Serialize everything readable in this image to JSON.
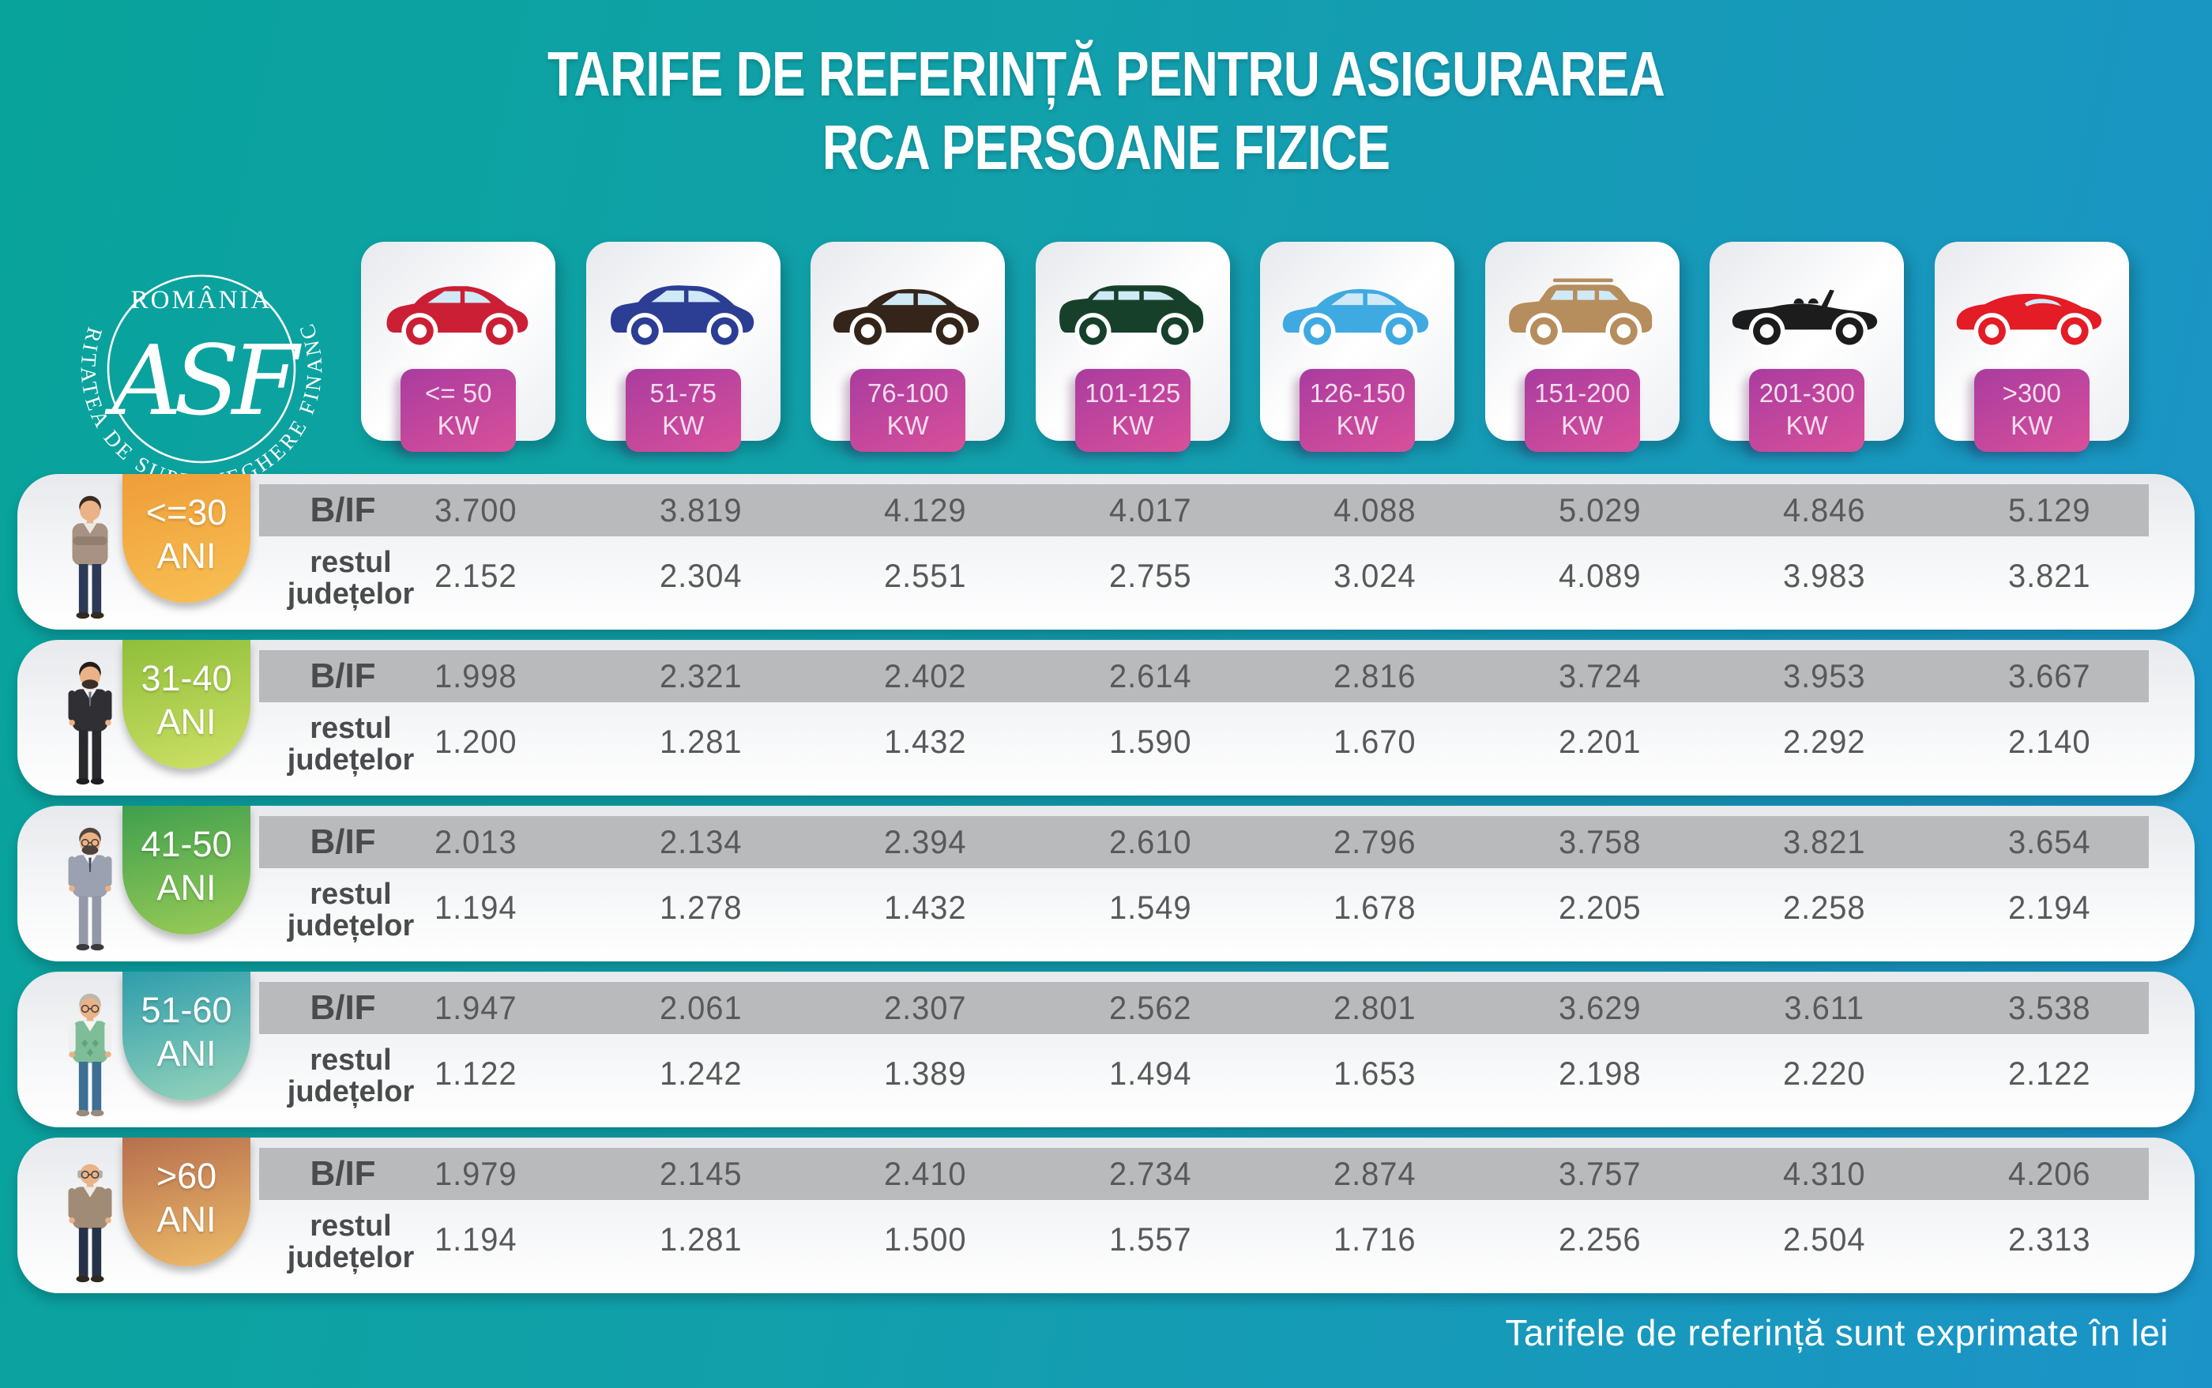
{
  "title": {
    "line1": "TARIFE DE REFERINȚĂ PENTRU ASIGURAREA",
    "line2": "RCA PERSOANE FIZICE"
  },
  "logo": {
    "country": "ROMÂNIA",
    "monogram": "ASF",
    "ring_text": "AUTORITATEA DE SUPRAVEGHERE FINANCIARĂ"
  },
  "footnote": "Tarifele de referință sunt exprimate în lei",
  "row_labels": {
    "bif": "B/IF",
    "rest_line1": "restul",
    "rest_line2": "județelor"
  },
  "badge_colors": {
    "kw_from": "#a93c9f",
    "kw_to": "#d9509a"
  },
  "power_categories": [
    {
      "label_line1": "<= 50",
      "label_line2": "KW",
      "car_type": "hatchback",
      "car_color": "#cb1f35"
    },
    {
      "label_line1": "51-75",
      "label_line2": "KW",
      "car_type": "crossover",
      "car_color": "#2c3d94"
    },
    {
      "label_line1": "76-100",
      "label_line2": "KW",
      "car_type": "sedan",
      "car_color": "#35241a"
    },
    {
      "label_line1": "101-125",
      "label_line2": "KW",
      "car_type": "minivan",
      "car_color": "#16402a"
    },
    {
      "label_line1": "126-150",
      "label_line2": "KW",
      "car_type": "sedan",
      "car_color": "#3fa9e1"
    },
    {
      "label_line1": "151-200",
      "label_line2": "KW",
      "car_type": "suv",
      "car_color": "#b68d5d"
    },
    {
      "label_line1": "201-300",
      "label_line2": "KW",
      "car_type": "convertible",
      "car_color": "#1d1c1c"
    },
    {
      "label_line1": ">300",
      "label_line2": "KW",
      "car_type": "sports",
      "car_color": "#e31c25"
    }
  ],
  "age_groups": [
    {
      "age_line1": "<=30",
      "age_line2": "ANI",
      "badge_from": "#ef9d38",
      "badge_to": "#f8c154",
      "bif": [
        "3.700",
        "3.819",
        "4.129",
        "4.017",
        "4.088",
        "5.029",
        "4.846",
        "5.129"
      ],
      "rest": [
        "2.152",
        "2.304",
        "2.551",
        "2.755",
        "3.024",
        "4.089",
        "3.983",
        "3.821"
      ],
      "person": {
        "hair": "#3a2b21",
        "skin": "#eab286",
        "top": "#a79284",
        "top_dark": "#927e6f",
        "shirt_color": "#eee9e2",
        "pants": "#2c3a57",
        "shoes": "#33291f",
        "glasses": false,
        "beard": null,
        "bald": false,
        "crossed": true,
        "sleeve": "#a79284",
        "tie": null,
        "vest": false
      }
    },
    {
      "age_line1": "31-40",
      "age_line2": "ANI",
      "badge_from": "#8fbe3b",
      "badge_to": "#cfe166",
      "bif": [
        "1.998",
        "2.321",
        "2.402",
        "2.614",
        "2.816",
        "3.724",
        "3.953",
        "3.667"
      ],
      "rest": [
        "1.200",
        "1.281",
        "1.432",
        "1.590",
        "1.670",
        "2.201",
        "2.292",
        "2.140"
      ],
      "person": {
        "hair": "#231d19",
        "skin": "#eab286",
        "top": "#302f33",
        "top_dark": "#26252a",
        "shirt_color": "#f2f3f5",
        "pants": "#2a292d",
        "shoes": "#1f1f22",
        "glasses": false,
        "beard": "#3a2f28",
        "bald": false,
        "crossed": false,
        "sleeve": "#302f33",
        "tie": "#6a7383",
        "vest": false
      }
    },
    {
      "age_line1": "41-50",
      "age_line2": "ANI",
      "badge_from": "#3f9f4e",
      "badge_to": "#9ccd57",
      "bif": [
        "2.013",
        "2.134",
        "2.394",
        "2.610",
        "2.796",
        "3.758",
        "3.821",
        "3.654"
      ],
      "rest": [
        "1.194",
        "1.278",
        "1.432",
        "1.549",
        "1.678",
        "2.205",
        "2.258",
        "2.194"
      ],
      "person": {
        "hair": "#52453c",
        "skin": "#eab286",
        "top": "#9ba1b0",
        "top_dark": "#878d9c",
        "shirt_color": "#f4f4f6",
        "pants": "#9298a6",
        "shoes": "#3a3a40",
        "glasses": true,
        "beard": "#4e423a",
        "bald": false,
        "crossed": false,
        "sleeve": "#9ba1b0",
        "tie": "#3f4a5e",
        "vest": false
      }
    },
    {
      "age_line1": "51-60",
      "age_line2": "ANI",
      "badge_from": "#2e9dab",
      "badge_to": "#98d5bb",
      "bif": [
        "1.947",
        "2.061",
        "2.307",
        "2.562",
        "2.801",
        "3.629",
        "3.611",
        "3.538"
      ],
      "rest": [
        "1.122",
        "1.242",
        "1.389",
        "1.494",
        "1.653",
        "2.198",
        "2.220",
        "2.122"
      ],
      "person": {
        "hair": "#bdb8ae",
        "skin": "#eab286",
        "top": "#7fbd98",
        "top_dark": "#68a984",
        "shirt_color": "#f6f6f4",
        "pants": "#3c6f91",
        "shoes": "#978b7e",
        "glasses": true,
        "beard": null,
        "bald": false,
        "crossed": false,
        "sleeve": "#eef0ee",
        "tie": null,
        "vest": true
      }
    },
    {
      "age_line1": ">60",
      "age_line2": "ANI",
      "badge_from": "#b76f4e",
      "badge_to": "#eebd69",
      "bif": [
        "1.979",
        "2.145",
        "2.410",
        "2.734",
        "2.874",
        "3.757",
        "4.310",
        "4.206"
      ],
      "rest": [
        "1.194",
        "1.281",
        "1.500",
        "1.557",
        "1.716",
        "2.256",
        "2.504",
        "2.313"
      ],
      "person": {
        "hair": "#b3aea6",
        "skin": "#eab286",
        "top": "#a08b77",
        "top_dark": "#8b7862",
        "shirt_color": "#efece6",
        "pants": "#263248",
        "shoes": "#2f2821",
        "glasses": true,
        "beard": null,
        "bald": true,
        "crossed": false,
        "sleeve": "#a08b77",
        "tie": null,
        "vest": false
      }
    }
  ],
  "chart_data": {
    "type": "table",
    "title": "TARIFE DE REFERINȚĂ PENTRU ASIGURAREA RCA PERSOANE FIZICE",
    "unit": "lei",
    "note": "Tarifele de referință sunt exprimate în lei",
    "columns": [
      "<=50 KW",
      "51-75 KW",
      "76-100 KW",
      "101-125 KW",
      "126-150 KW",
      "151-200 KW",
      "201-300 KW",
      ">300 KW"
    ],
    "rows": [
      {
        "age": "<=30 ANI",
        "region": "B/IF",
        "values": [
          3700,
          3819,
          4129,
          4017,
          4088,
          5029,
          4846,
          5129
        ]
      },
      {
        "age": "<=30 ANI",
        "region": "restul județelor",
        "values": [
          2152,
          2304,
          2551,
          2755,
          3024,
          4089,
          3983,
          3821
        ]
      },
      {
        "age": "31-40 ANI",
        "region": "B/IF",
        "values": [
          1998,
          2321,
          2402,
          2614,
          2816,
          3724,
          3953,
          3667
        ]
      },
      {
        "age": "31-40 ANI",
        "region": "restul județelor",
        "values": [
          1200,
          1281,
          1432,
          1590,
          1670,
          2201,
          2292,
          2140
        ]
      },
      {
        "age": "41-50 ANI",
        "region": "B/IF",
        "values": [
          2013,
          2134,
          2394,
          2610,
          2796,
          3758,
          3821,
          3654
        ]
      },
      {
        "age": "41-50 ANI",
        "region": "restul județelor",
        "values": [
          1194,
          1278,
          1432,
          1549,
          1678,
          2205,
          2258,
          2194
        ]
      },
      {
        "age": "51-60 ANI",
        "region": "B/IF",
        "values": [
          1947,
          2061,
          2307,
          2562,
          2801,
          3629,
          3611,
          3538
        ]
      },
      {
        "age": "51-60 ANI",
        "region": "restul județelor",
        "values": [
          1122,
          1242,
          1389,
          1494,
          1653,
          2198,
          2220,
          2122
        ]
      },
      {
        "age": ">60 ANI",
        "region": "B/IF",
        "values": [
          1979,
          2145,
          2410,
          2734,
          2874,
          3757,
          4310,
          4206
        ]
      },
      {
        "age": ">60 ANI",
        "region": "restul județelor",
        "values": [
          1194,
          1281,
          1500,
          1557,
          1716,
          2256,
          2504,
          2313
        ]
      }
    ]
  }
}
